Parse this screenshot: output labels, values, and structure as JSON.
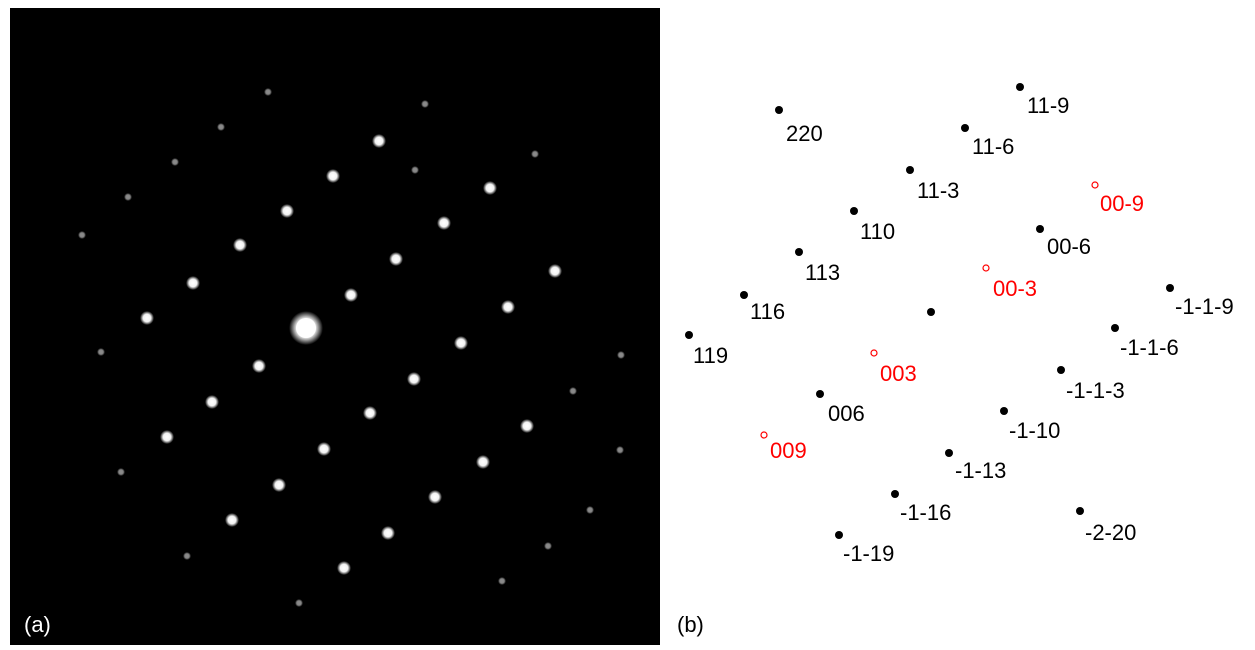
{
  "panels": {
    "a": {
      "label": "(a)"
    },
    "b": {
      "label": "(b)"
    }
  },
  "nodes": [
    {
      "label": "220",
      "color": "#000000"
    },
    {
      "label": "11-9",
      "color": "#000000"
    },
    {
      "label": "11-6",
      "color": "#000000"
    },
    {
      "label": "11-3",
      "color": "#000000"
    },
    {
      "label": "00-9",
      "color": "#ff0000"
    },
    {
      "label": "110",
      "color": "#000000"
    },
    {
      "label": "00-6",
      "color": "#000000"
    },
    {
      "label": "113",
      "color": "#000000"
    },
    {
      "label": "00-3",
      "color": "#ff0000"
    },
    {
      "label": "-1-1-9",
      "color": "#000000"
    },
    {
      "label": "116",
      "color": "#000000"
    },
    {
      "label": "-1-1-6",
      "color": "#000000"
    },
    {
      "label": "119",
      "color": "#000000"
    },
    {
      "label": "003",
      "color": "#ff0000"
    },
    {
      "label": "-1-1-3",
      "color": "#000000"
    },
    {
      "label": "006",
      "color": "#000000"
    },
    {
      "label": "-1-10",
      "color": "#000000"
    },
    {
      "label": "009",
      "color": "#ff0000"
    },
    {
      "label": "-1-13",
      "color": "#000000"
    },
    {
      "label": "-1-16",
      "color": "#000000"
    },
    {
      "label": "-2-20",
      "color": "#000000"
    },
    {
      "label": "-1-19",
      "color": "#000000"
    }
  ]
}
